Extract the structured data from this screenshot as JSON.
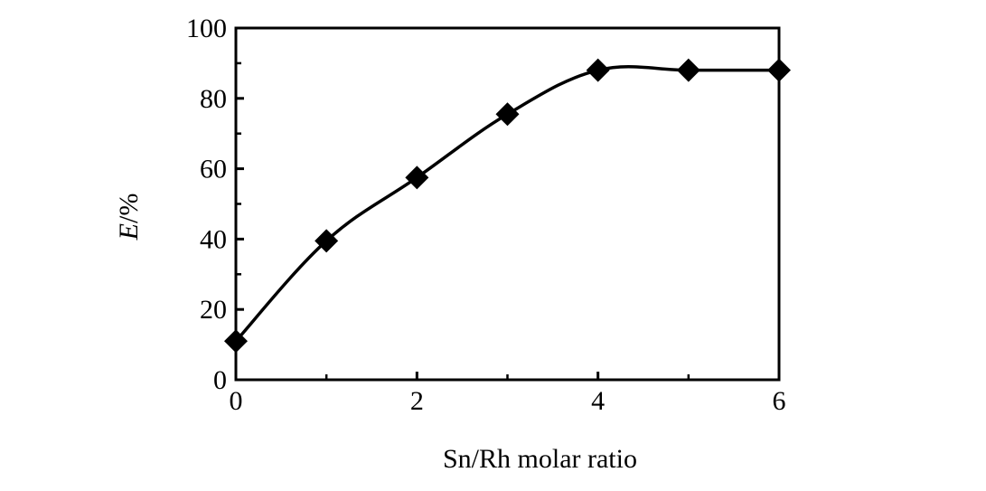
{
  "chart_data": {
    "type": "line",
    "title": "",
    "xlabel": "Sn/Rh molar ratio",
    "ylabel": {
      "italic": "E",
      "rest": "/%"
    },
    "xlim": [
      0,
      6
    ],
    "ylim": [
      0,
      100
    ],
    "x_ticks": [
      "0",
      "2",
      "4",
      "6"
    ],
    "y_ticks": [
      "0",
      "20",
      "40",
      "60",
      "80",
      "100"
    ],
    "grid": false,
    "legend": "none",
    "marker": "diamond",
    "line_color": "#000000",
    "series": [
      {
        "x": [
          0,
          1,
          2,
          3,
          4,
          5,
          6
        ],
        "y": [
          11,
          39.5,
          57.5,
          75.5,
          88,
          88,
          88
        ]
      }
    ]
  }
}
